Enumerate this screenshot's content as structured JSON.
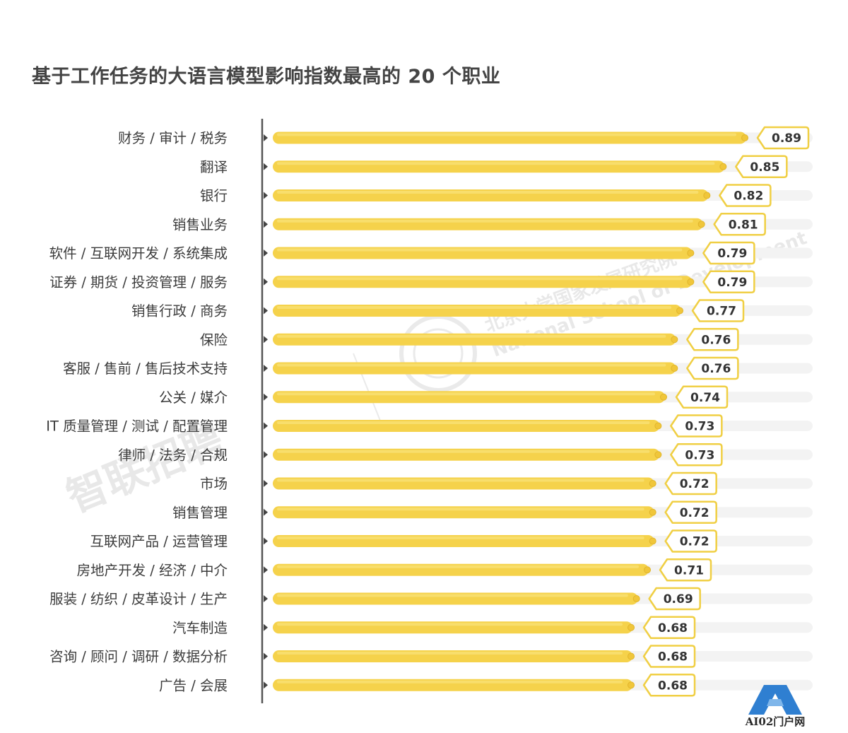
{
  "title": "基于工作任务的大语言模型影响指数最高的 20 个职业",
  "watermarks": {
    "left": "智联招聘",
    "right_cn": "北京大学国家发展研究院",
    "right_en": "National School of Development"
  },
  "logo": {
    "text": "AI02门户网"
  },
  "colors": {
    "bar": "#f5d24b",
    "bar_highlight": "#f9e37a",
    "track": "#f3f3f3",
    "badge_border": "#f0cf44",
    "dot": "#f0c63a",
    "axis": "#555555"
  },
  "chart_data": {
    "type": "bar",
    "orientation": "horizontal",
    "title": "基于工作任务的大语言模型影响指数最高的 20 个职业",
    "xlabel": "",
    "ylabel": "",
    "xlim": [
      0,
      1
    ],
    "grid": false,
    "legend": "none",
    "categories": [
      "财务 / 审计 / 税务",
      "翻译",
      "银行",
      "销售业务",
      "软件 / 互联网开发 / 系统集成",
      "证券 / 期货 / 投资管理 / 服务",
      "销售行政 / 商务",
      "保险",
      "客服 / 售前 / 售后技术支持",
      "公关 / 媒介",
      "IT 质量管理 / 测试 / 配置管理",
      "律师 / 法务 / 合规",
      "市场",
      "销售管理",
      "互联网产品 / 运营管理",
      "房地产开发 / 经济 / 中介",
      "服装 / 纺织 / 皮革设计 / 生产",
      "汽车制造",
      "咨询 / 顾问 / 调研 / 数据分析",
      "广告 / 会展"
    ],
    "values": [
      0.89,
      0.85,
      0.82,
      0.81,
      0.79,
      0.79,
      0.77,
      0.76,
      0.76,
      0.74,
      0.73,
      0.73,
      0.72,
      0.72,
      0.72,
      0.71,
      0.69,
      0.68,
      0.68,
      0.68
    ],
    "value_labels": [
      "0.89",
      "0.85",
      "0.82",
      "0.81",
      "0.79",
      "0.79",
      "0.77",
      "0.76",
      "0.76",
      "0.74",
      "0.73",
      "0.73",
      "0.72",
      "0.72",
      "0.72",
      "0.71",
      "0.69",
      "0.68",
      "0.68",
      "0.68"
    ]
  }
}
